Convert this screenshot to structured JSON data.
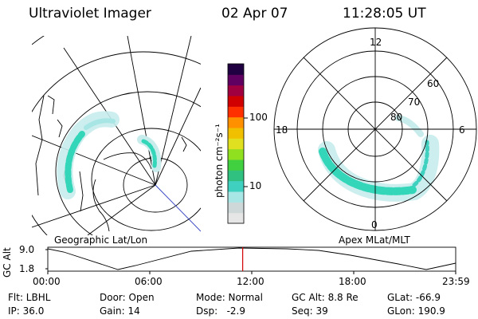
{
  "header": {
    "instrument": "Ultraviolet Imager",
    "date": "02 Apr 07",
    "time": "11:28:05 UT"
  },
  "colorbar": {
    "unit_label": "photon cm⁻²s⁻¹",
    "ticks": [
      {
        "label": "100",
        "value": 100
      },
      {
        "label": "10",
        "value": 10
      }
    ],
    "colors": [
      "#e6e6e6",
      "#cfd8d8",
      "#a8e6e6",
      "#40d0c0",
      "#30c080",
      "#40d040",
      "#90e020",
      "#e0e020",
      "#f0c000",
      "#ff9000",
      "#ff3000",
      "#d00000",
      "#a00040",
      "#600060",
      "#200040"
    ]
  },
  "left_panel": {
    "label": "Geographic Lat/Lon"
  },
  "right_panel": {
    "label": "Apex MLat/MLT",
    "mlt_labels": {
      "top": "12",
      "left": "18",
      "right": "6",
      "bottom": "0"
    },
    "lat_labels": [
      "60",
      "70",
      "80"
    ]
  },
  "timeline": {
    "ylabel": "GC Alt",
    "yticks": [
      "9.0",
      "1.8"
    ],
    "xticks": [
      "00:00",
      "06:00",
      "12:00",
      "18:00",
      "23:59"
    ],
    "current_time_fraction": 0.4778
  },
  "info": {
    "flt": "Flt: LBHL",
    "ip": "IP: 36.0",
    "door": "Door: Open",
    "gain": "Gain: 14",
    "mode": "Mode: Normal",
    "dsp": "Dsp:   -2.9",
    "gcalt": "GC Alt: 8.8 Re",
    "seq": "Seq: 39",
    "glat": "GLat: -66.9",
    "glon": "GLon: 190.9"
  },
  "colors": {
    "aurora_main": "#33d6b8",
    "aurora_light": "#c8ecec",
    "current_time_line": "#d00000"
  }
}
